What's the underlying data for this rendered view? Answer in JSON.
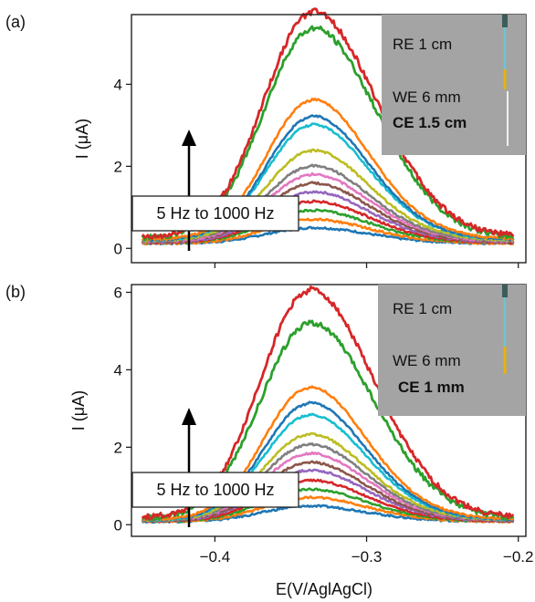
{
  "figure": {
    "xlabel": "E(V/AglAgCl)",
    "ylabel": "I (μA)",
    "x_ticks": [
      "−0.4",
      "−0.3",
      "−0.2"
    ],
    "colors": [
      "#1f77b4",
      "#ff7f0e",
      "#2ca02c",
      "#d62728",
      "#9467bd",
      "#8c564b",
      "#e377c2",
      "#7f7f7f",
      "#bcbd22",
      "#17becf"
    ]
  },
  "chart_data": [
    {
      "type": "line",
      "panel_label": "(a)",
      "xlim": [
        -0.455,
        -0.195
      ],
      "ylim": [
        -0.35,
        5.7
      ],
      "y_ticks": [
        "0",
        "2",
        "4"
      ],
      "annotation": "5 Hz to 1000 Hz",
      "inset": {
        "re": "RE 1 cm",
        "we": "WE 6 mm",
        "ce": "CE 1.5 cm"
      },
      "peak_x": -0.336,
      "series": [
        {
          "color": "#1f77b4",
          "peak": 0.38,
          "base": 0.12
        },
        {
          "color": "#ff7f0e",
          "peak": 0.58,
          "base": 0.12
        },
        {
          "color": "#2ca02c",
          "peak": 0.78,
          "base": 0.14
        },
        {
          "color": "#d62728",
          "peak": 1.0,
          "base": 0.14
        },
        {
          "color": "#9467bd",
          "peak": 1.22,
          "base": 0.15
        },
        {
          "color": "#8c564b",
          "peak": 1.42,
          "base": 0.16
        },
        {
          "color": "#e377c2",
          "peak": 1.62,
          "base": 0.17
        },
        {
          "color": "#7f7f7f",
          "peak": 1.82,
          "base": 0.18
        },
        {
          "color": "#bcbd22",
          "peak": 2.18,
          "base": 0.19
        },
        {
          "color": "#17becf",
          "peak": 2.8,
          "base": 0.2
        },
        {
          "color": "#1f77b4",
          "peak": 3.0,
          "base": 0.2
        },
        {
          "color": "#ff7f0e",
          "peak": 3.38,
          "base": 0.22
        },
        {
          "color": "#2ca02c",
          "peak": 5.08,
          "base": 0.25
        },
        {
          "color": "#d62728",
          "peak": 5.45,
          "base": 0.28
        }
      ]
    },
    {
      "type": "line",
      "panel_label": "(b)",
      "xlim": [
        -0.455,
        -0.195
      ],
      "ylim": [
        -0.3,
        6.2
      ],
      "y_ticks": [
        "0",
        "2",
        "4",
        "6"
      ],
      "annotation": "5 Hz to 1000 Hz",
      "inset": {
        "re": "RE 1 cm",
        "we": "WE 6 mm",
        "ce": "CE 1 mm"
      },
      "peak_x": -0.338,
      "series": [
        {
          "color": "#1f77b4",
          "peak": 0.4,
          "base": 0.08
        },
        {
          "color": "#ff7f0e",
          "peak": 0.62,
          "base": 0.08
        },
        {
          "color": "#2ca02c",
          "peak": 0.82,
          "base": 0.09
        },
        {
          "color": "#d62728",
          "peak": 1.05,
          "base": 0.09
        },
        {
          "color": "#9467bd",
          "peak": 1.3,
          "base": 0.1
        },
        {
          "color": "#8c564b",
          "peak": 1.5,
          "base": 0.1
        },
        {
          "color": "#e377c2",
          "peak": 1.72,
          "base": 0.11
        },
        {
          "color": "#7f7f7f",
          "peak": 1.95,
          "base": 0.11
        },
        {
          "color": "#bcbd22",
          "peak": 2.2,
          "base": 0.12
        },
        {
          "color": "#17becf",
          "peak": 2.7,
          "base": 0.12
        },
        {
          "color": "#1f77b4",
          "peak": 3.0,
          "base": 0.12
        },
        {
          "color": "#ff7f0e",
          "peak": 3.4,
          "base": 0.13
        },
        {
          "color": "#2ca02c",
          "peak": 5.02,
          "base": 0.16
        },
        {
          "color": "#d62728",
          "peak": 5.85,
          "base": 0.18
        }
      ]
    }
  ]
}
